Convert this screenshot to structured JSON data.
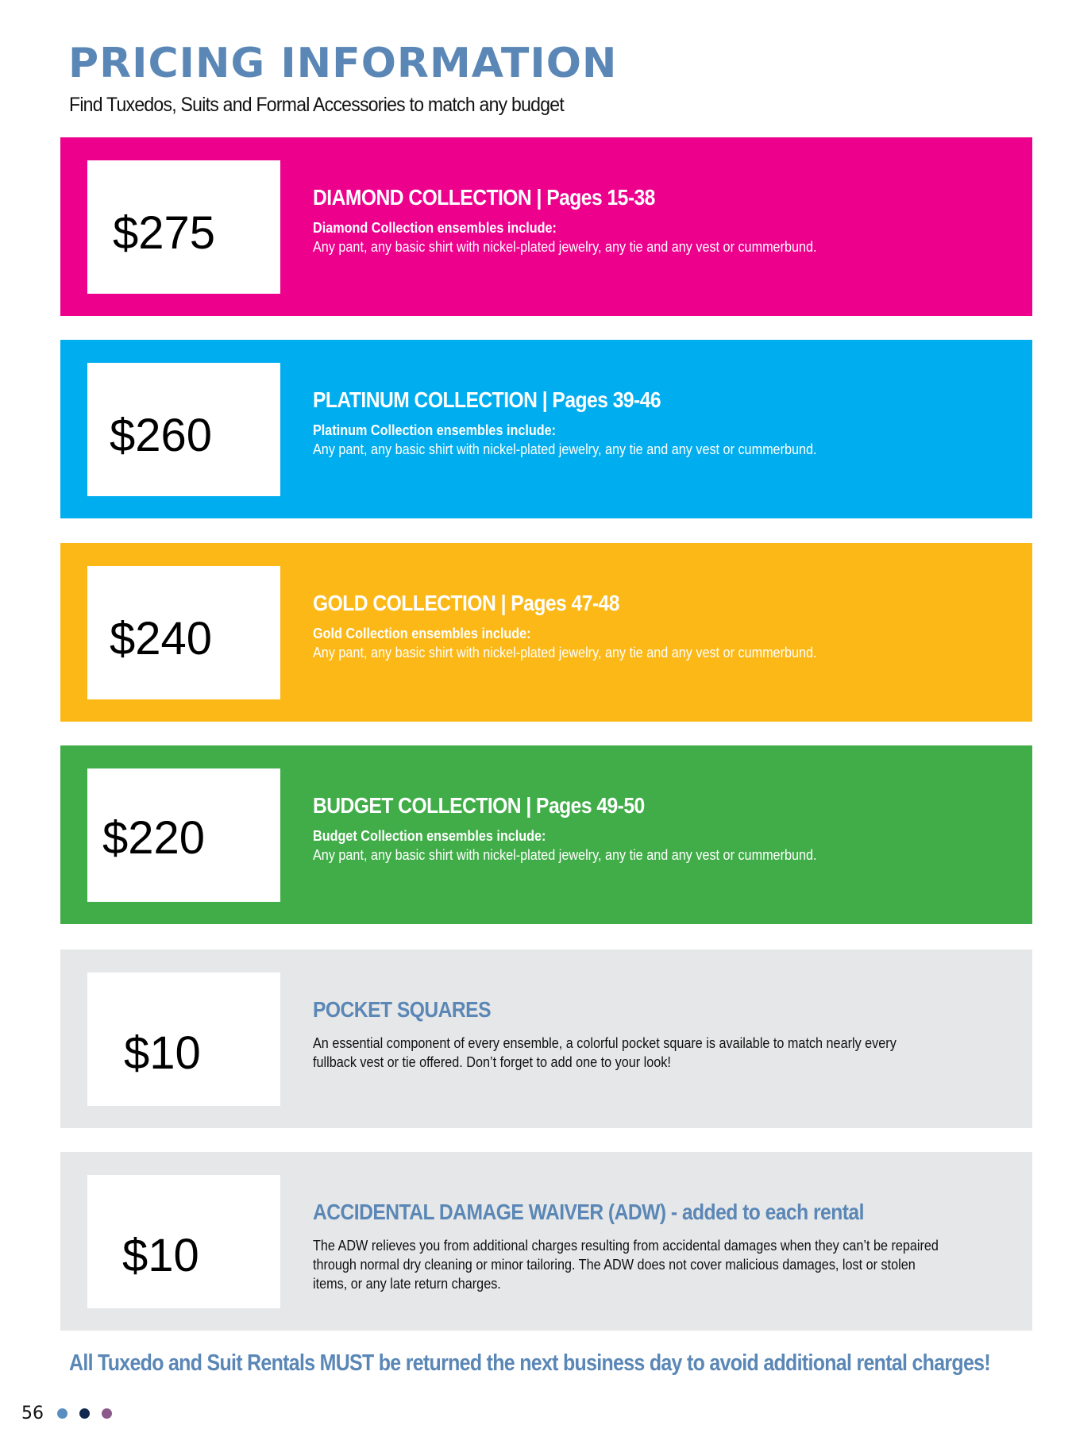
{
  "header": {
    "title": "PRICING INFORMATION",
    "subtitle": "Find Tuxedos, Suits and Formal Accessories to match any budget"
  },
  "collections": [
    {
      "price": "$275",
      "heading": "DIAMOND COLLECTION | Pages 15-38",
      "sub": "Diamond Collection ensembles include:",
      "desc": "Any pant, any basic shirt with nickel-plated jewelry, any tie and any vest or cummerbund.",
      "color": "#ec008c"
    },
    {
      "price": "$260",
      "heading": "PLATINUM COLLECTION | Pages 39-46",
      "sub": "Platinum Collection ensembles include:",
      "desc": "Any pant, any basic shirt with nickel-plated jewelry, any tie and any vest or cummerbund.",
      "color": "#00aeef"
    },
    {
      "price": "$240",
      "heading": "GOLD COLLECTION | Pages 47-48",
      "sub": "Gold Collection ensembles include:",
      "desc": "Any pant, any basic shirt with nickel-plated jewelry, any tie and any vest or cummerbund.",
      "color": "#fbb817"
    },
    {
      "price": "$220",
      "heading": "BUDGET COLLECTION | Pages 49-50",
      "sub": "Budget Collection ensembles include:",
      "desc": "Any pant, any basic shirt with nickel-plated jewelry, any tie and any vest or cummerbund.",
      "color": "#41ad49"
    }
  ],
  "extras": [
    {
      "price": "$10",
      "heading": "POCKET SQUARES",
      "desc": "An essential component of every ensemble, a colorful pocket square is available to match nearly every fullback vest or tie offered. Don’t forget to add one to your look!"
    },
    {
      "price": "$10",
      "heading": "ACCIDENTAL DAMAGE WAIVER (ADW) - added to each rental",
      "desc": "The ADW relieves you from additional charges resulting from accidental damages when they can’t be repaired through normal dry cleaning or minor tailoring. The ADW does not cover malicious damages, lost or stolen items, or any late return charges."
    }
  ],
  "footer": {
    "note": "All Tuxedo and Suit Rentals MUST be returned the next business day to avoid additional rental charges!",
    "page_number": "56",
    "dot_colors": [
      "#5a8ec0",
      "#13284f",
      "#8a5a8a"
    ]
  },
  "gray_color": "#e6e7e8"
}
